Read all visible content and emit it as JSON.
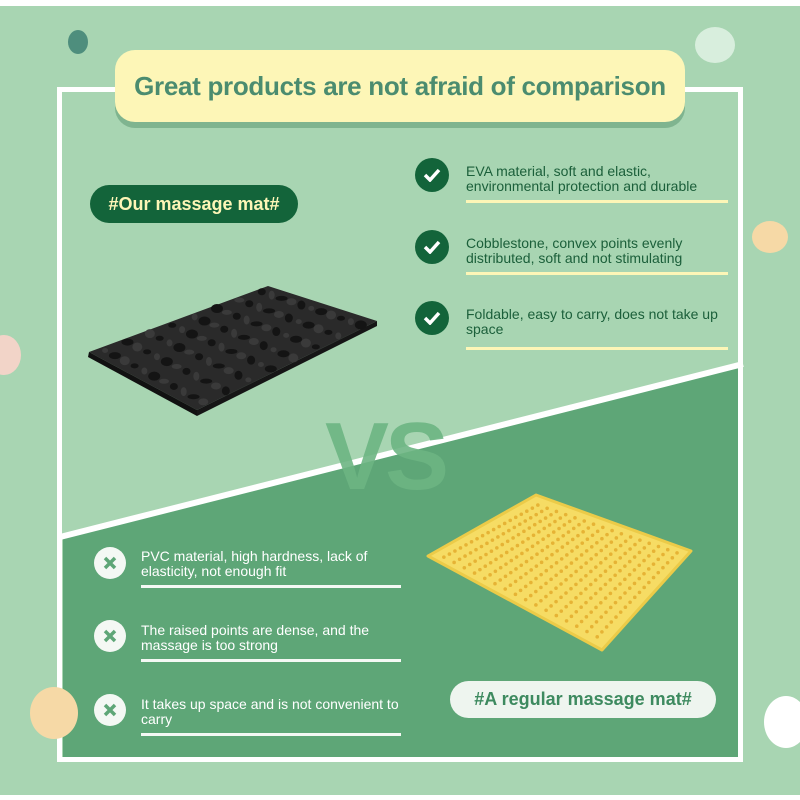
{
  "title": "Great products are not afraid of comparison",
  "ours": {
    "label": "#Our massage mat#",
    "features": [
      "EVA material, soft and elastic, environmental protection and durable",
      "Cobblestone, convex points evenly distributed, soft and not stimulating",
      "Foldable, easy to carry, does not take up space"
    ],
    "icon": "check-circle-icon"
  },
  "vs": "VS",
  "regular": {
    "label": "#A regular massage mat#",
    "drawbacks": [
      "PVC material, high hardness, lack of elasticity, not enough fit",
      "The raised points are dense, and the massage is too strong",
      "It takes up space and is not convenient to carry"
    ],
    "icon": "x-circle-icon"
  },
  "colors": {
    "background": "#a8d5b2",
    "dark_green": "#13643a",
    "mid_green": "#5ea677",
    "yellow": "#fdf6b7"
  }
}
